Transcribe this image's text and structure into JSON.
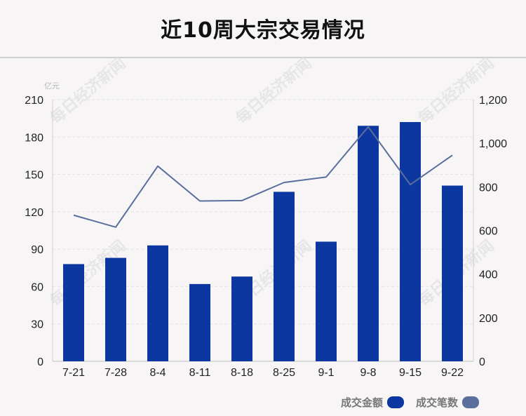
{
  "title": "近10周大宗交易情况",
  "watermark": "每日经济新闻",
  "chart_data": {
    "type": "bar",
    "categories": [
      "7-21",
      "7-28",
      "8-4",
      "8-11",
      "8-18",
      "8-25",
      "9-1",
      "9-8",
      "9-15",
      "9-22"
    ],
    "series": [
      {
        "name": "成交金额",
        "type": "bar",
        "axis": "left",
        "color": "#0c36a0",
        "values": [
          78,
          83,
          93,
          62,
          68,
          136,
          96,
          189,
          192,
          141
        ]
      },
      {
        "name": "成交笔数",
        "type": "line",
        "axis": "right",
        "color": "#5a6f9c",
        "values": [
          670,
          615,
          895,
          735,
          737,
          820,
          845,
          1075,
          810,
          945
        ]
      }
    ],
    "y_left": {
      "unit": "亿元",
      "ylim": [
        0,
        210
      ],
      "ticks": [
        "0",
        "30",
        "60",
        "90",
        "120",
        "150",
        "180",
        "210"
      ]
    },
    "y_right": {
      "ylim": [
        0,
        1200
      ],
      "ticks": [
        "0",
        "200",
        "400",
        "600",
        "800",
        "1,000",
        "1,200"
      ]
    },
    "grid": true,
    "legend_position": "bottom-right"
  },
  "legend": {
    "bar_label": "成交金额",
    "line_label": "成交笔数",
    "bar_color": "#0c36a0",
    "line_color": "#5a6f9c"
  }
}
